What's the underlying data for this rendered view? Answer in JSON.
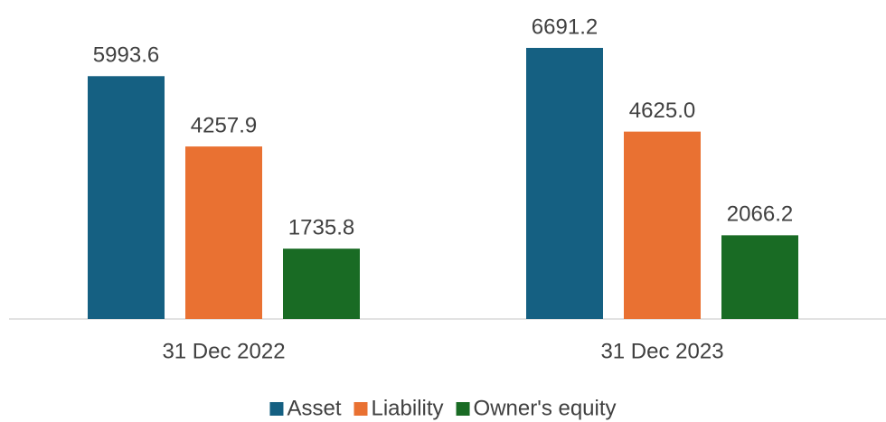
{
  "chart_data": {
    "type": "bar",
    "categories": [
      "31 Dec 2022",
      "31 Dec 2023"
    ],
    "series": [
      {
        "name": "Asset",
        "color": "#156082",
        "values": [
          5993.6,
          6691.2
        ]
      },
      {
        "name": "Liability",
        "color": "#e97132",
        "values": [
          4257.9,
          4625.0
        ],
        "value_labels": [
          "4257.9",
          "4625.0"
        ]
      },
      {
        "name": "Owner's equity",
        "color": "#196b24",
        "values": [
          1735.8,
          2066.2
        ]
      }
    ],
    "legend": "bottom"
  }
}
